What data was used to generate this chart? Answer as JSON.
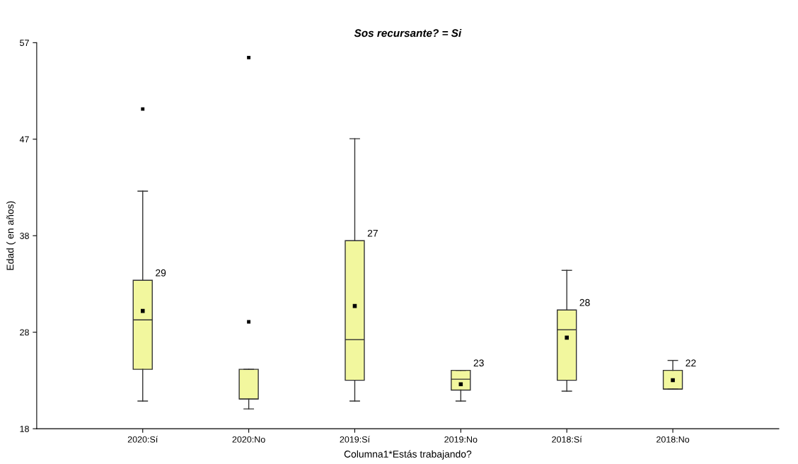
{
  "chart_data": {
    "type": "box",
    "title": "Sos recursante? = Si",
    "xlabel": "Columna1*Estás trabajando?",
    "ylabel": "Edad ( en años)",
    "categories": [
      "2020:Sí",
      "2020:No",
      "2019:Sí",
      "2019:No",
      "2018:Sí",
      "2018:No"
    ],
    "boxes": [
      {
        "low": 20.8,
        "q1": 24,
        "median": 29,
        "q3": 33,
        "high": 42,
        "mean": 29.9,
        "outliers": [
          50.3
        ]
      },
      {
        "low": 20,
        "q1": 21,
        "median": 21,
        "q3": 24,
        "high": 24,
        "outliers": [
          28.8,
          55.5
        ]
      },
      {
        "low": 20.8,
        "q1": 22.9,
        "median": 27,
        "q3": 37,
        "high": 47.3,
        "mean": 30.4
      },
      {
        "low": 20.8,
        "q1": 21.9,
        "median": 23,
        "q3": 23.9,
        "high": 23.9,
        "mean": 22.5
      },
      {
        "low": 21.8,
        "q1": 22.9,
        "median": 28,
        "q3": 30,
        "high": 34,
        "mean": 27.2
      },
      {
        "low": 22,
        "q1": 22,
        "median": 22,
        "q3": 23.9,
        "high": 24.9,
        "mean": 22.9
      }
    ],
    "value_labels": [
      "29",
      null,
      "27",
      "23",
      "28",
      "22"
    ],
    "color": "#f2f79e",
    "ylim": [
      18,
      57
    ],
    "yticks": [
      18,
      {
        "value": 27.75,
        "label": "28"
      },
      {
        "value": 37.5,
        "label": "38"
      },
      {
        "value": 47.25,
        "label": "47"
      },
      57
    ],
    "grid": false,
    "legend": false
  }
}
